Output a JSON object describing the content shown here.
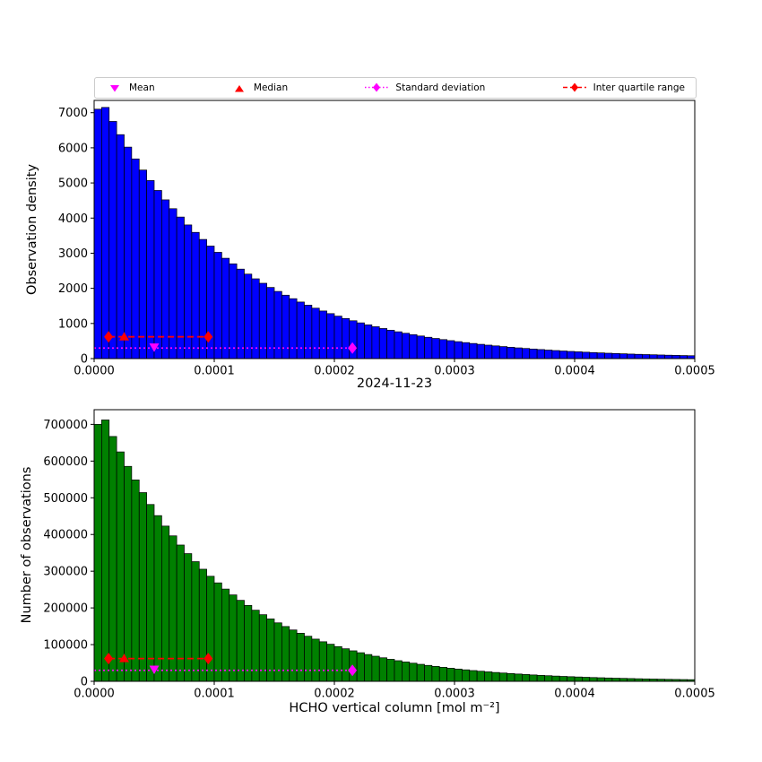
{
  "figure": {
    "title": "2024-11-23",
    "xlabel": "HCHO vertical column [mol m⁻²]"
  },
  "legend": {
    "items": [
      {
        "label": "Mean",
        "marker": "triangle-down",
        "color": "#ff00ff"
      },
      {
        "label": "Median",
        "marker": "triangle-up",
        "color": "#ff0000"
      },
      {
        "label": "Standard deviation",
        "marker": "diamond-dotted-line",
        "color": "#ff00ff"
      },
      {
        "label": "Inter quartile range",
        "marker": "diamond-dashed-line",
        "color": "#ff0000"
      }
    ]
  },
  "chart_data": [
    {
      "type": "bar",
      "name": "observation-density-histogram",
      "ylabel": "Observation density",
      "bar_color": "#0000ff",
      "bar_edge_color": "#000000",
      "xlim": [
        0,
        0.0005
      ],
      "ylim": [
        0,
        7350
      ],
      "bin_start": 0,
      "bin_width": 6.25e-06,
      "yticks": [
        0,
        1000,
        2000,
        3000,
        4000,
        5000,
        6000,
        7000
      ],
      "ytick_labels": [
        "0",
        "1000",
        "2000",
        "3000",
        "4000",
        "5000",
        "6000",
        "7000"
      ],
      "xticks": [
        0,
        0.0001,
        0.0002,
        0.0003,
        0.0004,
        0.0005
      ],
      "xtick_labels": [
        "0.0000",
        "0.0001",
        "0.0002",
        "0.0003",
        "0.0004",
        "0.0005"
      ],
      "values": [
        7100,
        7150,
        6751,
        6375,
        6020,
        5684,
        5367,
        5068,
        4786,
        4519,
        4267,
        4029,
        3805,
        3593,
        3392,
        3203,
        3025,
        2856,
        2697,
        2547,
        2405,
        2271,
        2144,
        2025,
        1912,
        1805,
        1705,
        1610,
        1520,
        1435,
        1355,
        1280,
        1208,
        1141,
        1077,
        1017,
        960,
        907,
        856,
        808,
        763,
        721,
        681,
        643,
        607,
        573,
        541,
        511,
        482,
        455,
        430,
        406,
        383,
        362,
        342,
        323,
        305,
        288,
        272,
        257,
        242,
        229,
        216,
        204,
        193,
        182,
        172,
        162,
        153,
        145,
        137,
        129,
        122,
        115,
        109,
        103,
        97,
        92,
        87,
        82
      ],
      "markers": {
        "mean": {
          "x": 5e-05,
          "y": 330,
          "color": "#ff00ff"
        },
        "median": {
          "x": 2.5e-05,
          "y": 620,
          "color": "#ff0000"
        },
        "std": {
          "x1": 0.0,
          "x2": 0.000215,
          "y": 300,
          "color": "#ff00ff"
        },
        "iqr": {
          "x1": 1.2e-05,
          "x2": 9.5e-05,
          "y": 620,
          "color": "#ff0000"
        }
      }
    },
    {
      "type": "bar",
      "name": "number-of-observations-histogram",
      "ylabel": "Number of observations",
      "bar_color": "#008000",
      "bar_edge_color": "#000000",
      "xlim": [
        0,
        0.0005
      ],
      "ylim": [
        0,
        740000
      ],
      "bin_start": 0,
      "bin_width": 6.25e-06,
      "yticks": [
        0,
        100000,
        200000,
        300000,
        400000,
        500000,
        600000,
        700000
      ],
      "ytick_labels": [
        "0",
        "100000",
        "200000",
        "300000",
        "400000",
        "500000",
        "600000",
        "700000"
      ],
      "xticks": [
        0,
        0.0001,
        0.0002,
        0.0003,
        0.0004,
        0.0005
      ],
      "xtick_labels": [
        "0.0000",
        "0.0001",
        "0.0002",
        "0.0003",
        "0.0004",
        "0.0005"
      ],
      "values": [
        700000,
        712000,
        667000,
        625000,
        585600,
        548700,
        514100,
        481700,
        451400,
        422900,
        396300,
        371300,
        347900,
        326000,
        305400,
        286200,
        268200,
        251300,
        235400,
        220600,
        206700,
        193700,
        181500,
        170000,
        159300,
        149300,
        139900,
        131000,
        122800,
        115000,
        107800,
        101000,
        94600,
        88700,
        83100,
        77900,
        73000,
        68400,
        64100,
        60000,
        56200,
        52700,
        49400,
        46300,
        43400,
        40600,
        38100,
        35700,
        33400,
        31300,
        29300,
        27500,
        25800,
        24100,
        22600,
        21200,
        19900,
        18600,
        17400,
        16300,
        15300,
        14300,
        13400,
        12600,
        11800,
        11000,
        10300,
        9700,
        9100,
        8500,
        8000,
        7500,
        7000,
        6600,
        6200,
        5800,
        5400,
        5100,
        4800,
        4500
      ],
      "markers": {
        "mean": {
          "x": 5e-05,
          "y": 33000,
          "color": "#ff00ff"
        },
        "median": {
          "x": 2.5e-05,
          "y": 62000,
          "color": "#ff0000"
        },
        "std": {
          "x1": 0.0,
          "x2": 0.000215,
          "y": 30000,
          "color": "#ff00ff"
        },
        "iqr": {
          "x1": 1.2e-05,
          "x2": 9.5e-05,
          "y": 62000,
          "color": "#ff0000"
        }
      }
    }
  ]
}
